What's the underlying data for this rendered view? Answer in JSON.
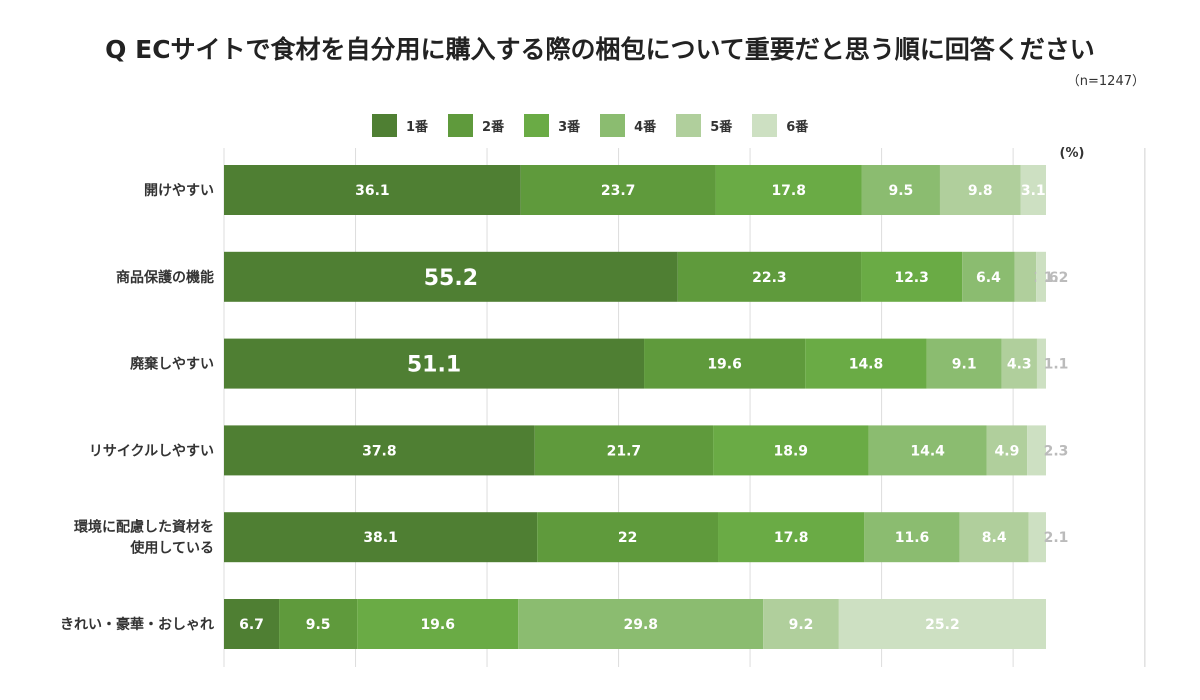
{
  "title": "Q ECサイトで食材を自分用に購入する際の梱包について重要だと思う順に回答ください",
  "sample_size": "（n=1247）",
  "unit_label": "(%)",
  "colors": [
    "#4f7f33",
    "#5f9a3c",
    "#6aab45",
    "#8bbc70",
    "#b0cf9c",
    "#cde0c2"
  ],
  "chart_data": {
    "type": "bar",
    "orientation": "horizontal",
    "stacked": true,
    "ylabel": "(%)",
    "xlim": [
      0,
      100
    ],
    "grid": true,
    "legend_position": "top",
    "categories": [
      "開けやすい",
      "商品保護の機能",
      "廃棄しやすい",
      "リサイクルしやすい",
      "環境に配慮した資材を\n使用している",
      "きれい・豪華・おしゃれ"
    ],
    "series": [
      {
        "name": "1番",
        "values": [
          36.1,
          55.2,
          51.1,
          37.8,
          38.1,
          6.7
        ]
      },
      {
        "name": "2番",
        "values": [
          23.7,
          22.3,
          19.6,
          21.7,
          22,
          9.5
        ]
      },
      {
        "name": "3番",
        "values": [
          17.8,
          12.3,
          14.8,
          18.9,
          17.8,
          19.6
        ]
      },
      {
        "name": "4番",
        "values": [
          9.5,
          6.4,
          9.1,
          14.4,
          11.6,
          29.8
        ]
      },
      {
        "name": "5番",
        "values": [
          9.8,
          2.6,
          4.3,
          4.9,
          8.4,
          9.2
        ]
      },
      {
        "name": "6番",
        "values": [
          3.1,
          1.2,
          1.1,
          2.3,
          2.1,
          25.2
        ]
      }
    ]
  }
}
